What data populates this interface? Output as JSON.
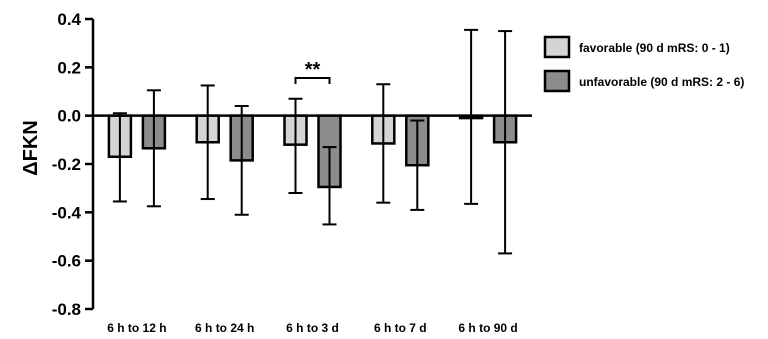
{
  "chart_data": {
    "type": "bar",
    "ylabel": "ΔFKN",
    "ylim": [
      -0.8,
      0.4
    ],
    "yticks": [
      0.4,
      0.2,
      0.0,
      -0.2,
      -0.4,
      -0.6,
      -0.8
    ],
    "ytick_labels": [
      "0.4",
      "0.2",
      "0.0",
      "-0.2",
      "-0.4",
      "-0.6",
      "-0.8"
    ],
    "categories": [
      "6 h to 12 h",
      "6 h to 24 h",
      "6 h to 3 d",
      "6 h to 7 d",
      "6 h to 90 d"
    ],
    "series": [
      {
        "name": "favorable (90 d mRS: 0 - 1)",
        "color": "#d4d4d4",
        "values": [
          -0.17,
          -0.11,
          -0.12,
          -0.115,
          -0.01
        ],
        "error_low": [
          -0.355,
          -0.345,
          -0.32,
          -0.36,
          -0.365
        ],
        "error_high": [
          0.01,
          0.125,
          0.07,
          0.13,
          0.355
        ]
      },
      {
        "name": "unfavorable (90 d mRS: 2 - 6)",
        "color": "#8c8c8c",
        "values": [
          -0.135,
          -0.185,
          -0.295,
          -0.205,
          -0.11
        ],
        "error_low": [
          -0.375,
          -0.41,
          -0.45,
          -0.39,
          -0.57
        ],
        "error_high": [
          0.105,
          0.04,
          -0.13,
          -0.02,
          0.35
        ]
      }
    ],
    "legend_position": "top-right",
    "grid": false,
    "annotations": [
      {
        "text": "**",
        "category_index": 2
      }
    ]
  }
}
